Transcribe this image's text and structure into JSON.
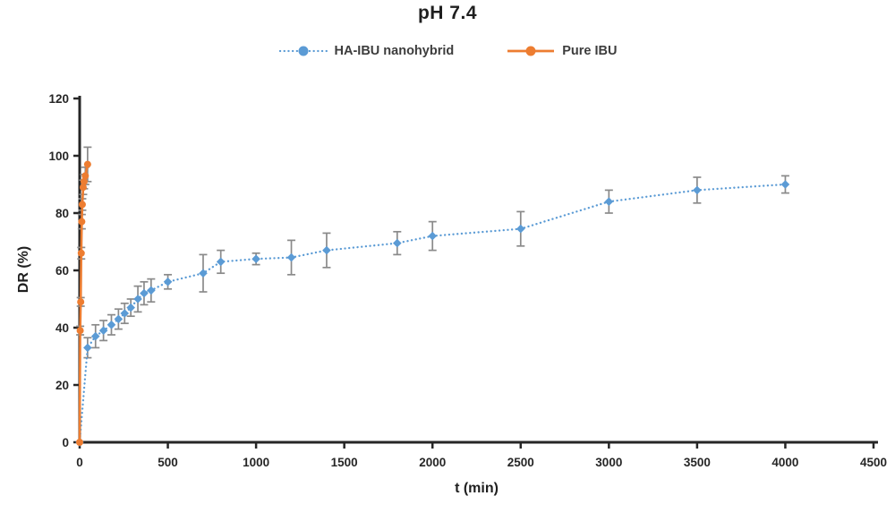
{
  "chart_data": {
    "type": "scatter",
    "title": "pH 7.4",
    "xlabel": "t (min)",
    "ylabel": "DR (%)",
    "xlim": [
      0,
      4500
    ],
    "ylim": [
      0,
      120
    ],
    "xticks": [
      0,
      500,
      1000,
      1500,
      2000,
      2500,
      3000,
      3500,
      4000,
      4500
    ],
    "yticks": [
      0,
      20,
      40,
      60,
      80,
      100,
      120
    ],
    "grid": false,
    "legend_position": "top-center",
    "background_color": "#ffffff",
    "axis_color": "#262626",
    "error_bar_color": "#8a8a8a",
    "series": [
      {
        "name": "HA-IBU nanohybrid",
        "color": "#5B9BD5",
        "line_style": "dotted",
        "marker": "diamond",
        "x": [
          0,
          45,
          90,
          135,
          180,
          220,
          255,
          290,
          330,
          365,
          405,
          500,
          700,
          800,
          1000,
          1200,
          1400,
          1800,
          2000,
          2500,
          3000,
          3500,
          4000
        ],
        "y": [
          0,
          33,
          37,
          39,
          41,
          43,
          45,
          47,
          50,
          52,
          53,
          56,
          59,
          63,
          64,
          64.5,
          67,
          69.5,
          72,
          74.5,
          84,
          88,
          90
        ],
        "yerr": [
          0,
          3.5,
          4,
          3.5,
          3.5,
          3.5,
          3.5,
          3,
          4.5,
          4,
          4,
          2.5,
          6.5,
          4,
          2,
          6,
          6,
          4,
          5,
          6,
          4,
          4.5,
          3
        ]
      },
      {
        "name": "Pure IBU",
        "color": "#ED7D31",
        "line_style": "solid",
        "marker": "circle",
        "x": [
          0,
          3,
          6,
          9,
          12,
          15,
          20,
          25,
          32,
          45
        ],
        "y": [
          0,
          39,
          49,
          66,
          77,
          83,
          89,
          91,
          93,
          97
        ],
        "yerr": [
          0,
          1.5,
          1.5,
          2,
          2.5,
          2,
          2.5,
          2.5,
          3,
          6
        ]
      }
    ]
  }
}
